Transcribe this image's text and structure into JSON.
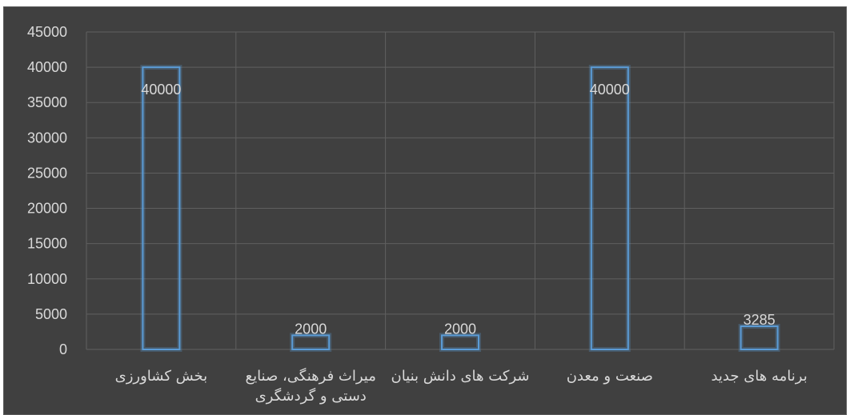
{
  "chart_data": {
    "type": "bar",
    "title": "",
    "xlabel": "",
    "ylabel": "",
    "ylim": [
      0,
      45000
    ],
    "yticks": [
      0,
      5000,
      10000,
      15000,
      20000,
      25000,
      30000,
      35000,
      40000,
      45000
    ],
    "grid": true,
    "legend": "none",
    "categories": [
      [
        "بخش کشاورزی"
      ],
      [
        "میراث فرهنگی، صنایع",
        "دستی و گردشگری"
      ],
      [
        "شرکت های دانش بنیان"
      ],
      [
        "صنعت و معدن"
      ],
      [
        "برنامه های جدید"
      ]
    ],
    "values": [
      40000,
      2000,
      2000,
      40000,
      3285
    ],
    "data_labels": [
      "40000",
      "2000",
      "2000",
      "40000",
      "3285"
    ],
    "colors": {
      "background": "#404040",
      "bar": "#5b9bd5",
      "text": "#d9d9d9",
      "grid": "#5f5f5f"
    }
  }
}
